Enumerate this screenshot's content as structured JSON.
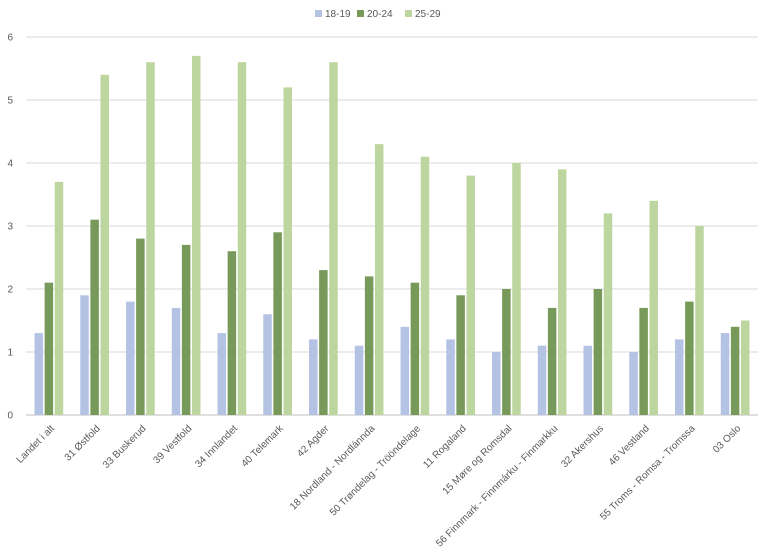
{
  "chart_data": {
    "type": "bar",
    "title": "",
    "xlabel": "",
    "ylabel": "",
    "ylim": [
      0,
      6
    ],
    "yticks": [
      0,
      1,
      2,
      3,
      4,
      5,
      6
    ],
    "grid": true,
    "legend_position": "top-center",
    "categories": [
      "Landet i alt",
      "31 Østfold",
      "33 Buskerud",
      "39 Vestfold",
      "34 Innlandet",
      "40 Telemark",
      "42 Agder",
      "18 Nordland - Nordlánnda",
      "50 Trøndelag - Trööndelage",
      "11 Rogaland",
      "15 Møre og Romsdal",
      "56 Finnmark - Finnmárku - Finmarkku",
      "32 Akershus",
      "46 Vestland",
      "55 Troms - Romsa - Tromssa",
      "03 Oslo"
    ],
    "series": [
      {
        "name": "18-19",
        "color": "#b4c2e4",
        "values": [
          1.3,
          1.9,
          1.8,
          1.7,
          1.3,
          1.6,
          1.2,
          1.1,
          1.4,
          1.2,
          1.0,
          1.1,
          1.1,
          1.0,
          1.2,
          1.3
        ]
      },
      {
        "name": "20-24",
        "color": "#779a5a",
        "values": [
          2.1,
          3.1,
          2.8,
          2.7,
          2.6,
          2.9,
          2.3,
          2.2,
          2.1,
          1.9,
          2.0,
          1.7,
          2.0,
          1.7,
          1.8,
          1.4
        ]
      },
      {
        "name": "25-29",
        "color": "#bdd6a0",
        "values": [
          3.7,
          5.4,
          5.6,
          5.7,
          5.6,
          5.2,
          5.6,
          4.3,
          4.1,
          3.8,
          4.0,
          3.9,
          3.2,
          3.4,
          3.0,
          1.5
        ]
      }
    ]
  }
}
